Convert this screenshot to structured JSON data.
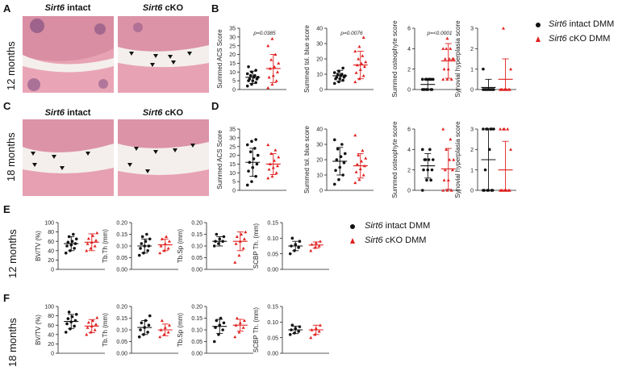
{
  "panels": {
    "A": {
      "label": "A",
      "row_label": "12 months"
    },
    "B": {
      "label": "B"
    },
    "C": {
      "label": "C",
      "row_label": "18 months"
    },
    "D": {
      "label": "D"
    },
    "E": {
      "label": "E",
      "row_label": "12 months"
    },
    "F": {
      "label": "F",
      "row_label": "18 months"
    }
  },
  "histology": {
    "intact_title_italic": "Sirt6",
    "intact_title_rest": " intact",
    "cko_title_italic": "Sirt6",
    "cko_title_rest": " cKO"
  },
  "legend_bd": {
    "intact_italic": "Sirt6",
    "intact_rest": " intact DMM",
    "cko_italic": "Sirt6",
    "cko_rest": " cKO DMM"
  },
  "legend_ef": {
    "intact_italic": "Sirt6",
    "intact_rest": " intact DMM",
    "cko_italic": "Sirt6",
    "cko_rest": " cKO DMM"
  },
  "colors": {
    "intact": "#111111",
    "cko": "#e02020",
    "tissue": "#e9a7b5",
    "tissue_dark": "#c96b85",
    "space": "#f3f0ee"
  },
  "chart_data": [
    {
      "id": "B1",
      "type": "scatter",
      "ylabel": "Summed ACS Score",
      "ylim": [
        0,
        35
      ],
      "yticks": [
        0,
        5,
        10,
        15,
        20,
        25,
        30,
        35
      ],
      "pvalue": "p=0.0385",
      "groups": [
        {
          "name": "Sirt6 intact DMM",
          "mean": 7,
          "sd": 3.5,
          "values": [
            2,
            3,
            4,
            5,
            5,
            6,
            6,
            7,
            7,
            8,
            8,
            9,
            10,
            11,
            13
          ]
        },
        {
          "name": "Sirt6 cKO DMM",
          "mean": 12,
          "sd": 8,
          "values": [
            1,
            3,
            5,
            7,
            8,
            10,
            12,
            13,
            15,
            17,
            20,
            25,
            29
          ]
        }
      ]
    },
    {
      "id": "B2",
      "type": "scatter",
      "ylabel": "Summed tol. blue score",
      "ylim": [
        0,
        40
      ],
      "yticks": [
        0,
        10,
        20,
        30,
        40
      ],
      "pvalue": "p=0.0076",
      "groups": [
        {
          "name": "Sirt6 intact DMM",
          "mean": 9,
          "sd": 3.5,
          "values": [
            4,
            5,
            6,
            7,
            7,
            8,
            8,
            9,
            9,
            10,
            10,
            11,
            12,
            14
          ]
        },
        {
          "name": "Sirt6 cKO DMM",
          "mean": 16,
          "sd": 9,
          "values": [
            5,
            7,
            9,
            11,
            13,
            15,
            16,
            17,
            18,
            20,
            22,
            25,
            28,
            34
          ]
        }
      ]
    },
    {
      "id": "B3",
      "type": "scatter",
      "ylabel": "Summed osteophyte score",
      "ylim": [
        0,
        6
      ],
      "yticks": [
        0,
        2,
        4,
        6
      ],
      "pvalue": "p=<0.0001",
      "groups": [
        {
          "name": "Sirt6 intact DMM",
          "mean": 0.5,
          "sd": 0.5,
          "values": [
            0,
            0,
            0,
            0,
            0,
            0,
            0,
            1,
            1,
            1,
            1,
            1,
            1,
            1
          ]
        },
        {
          "name": "Sirt6 cKO DMM",
          "mean": 2.8,
          "sd": 1.7,
          "values": [
            1,
            1,
            1,
            2,
            2,
            3,
            3,
            3,
            3,
            4,
            4,
            4,
            5
          ]
        }
      ]
    },
    {
      "id": "B4",
      "type": "scatter",
      "ylabel": "Synovial hyperplasia score",
      "ylim": [
        0,
        3
      ],
      "yticks": [
        0,
        1,
        2,
        3
      ],
      "pvalue": "",
      "groups": [
        {
          "name": "Sirt6 intact DMM",
          "mean": 0.1,
          "sd": 0.4,
          "values": [
            0,
            0,
            0,
            0,
            0,
            0,
            0,
            0,
            0,
            0,
            0,
            1
          ]
        },
        {
          "name": "Sirt6 cKO DMM",
          "mean": 0.5,
          "sd": 1.0,
          "values": [
            0,
            0,
            0,
            0,
            0,
            0,
            0,
            0,
            1,
            3
          ]
        }
      ]
    },
    {
      "id": "D1",
      "type": "scatter",
      "ylabel": "Summed ACS Score",
      "ylim": [
        0,
        35
      ],
      "yticks": [
        0,
        5,
        10,
        15,
        20,
        25,
        30,
        35
      ],
      "pvalue": "",
      "groups": [
        {
          "name": "Sirt6 intact DMM",
          "mean": 16,
          "sd": 8,
          "values": [
            3,
            5,
            8,
            11,
            13,
            15,
            16,
            18,
            20,
            22,
            24,
            26,
            28,
            29
          ]
        },
        {
          "name": "Sirt6 cKO DMM",
          "mean": 15,
          "sd": 6,
          "values": [
            7,
            8,
            10,
            12,
            13,
            14,
            15,
            17,
            19,
            21,
            23,
            26
          ]
        }
      ]
    },
    {
      "id": "D2",
      "type": "scatter",
      "ylabel": "Summed tol. blue score",
      "ylim": [
        0,
        40
      ],
      "yticks": [
        0,
        10,
        20,
        30,
        40
      ],
      "pvalue": "",
      "groups": [
        {
          "name": "Sirt6 intact DMM",
          "mean": 19,
          "sd": 9,
          "values": [
            4,
            7,
            10,
            13,
            15,
            18,
            20,
            22,
            24,
            27,
            30,
            33
          ]
        },
        {
          "name": "Sirt6 cKO DMM",
          "mean": 16,
          "sd": 8,
          "values": [
            5,
            7,
            10,
            12,
            14,
            16,
            17,
            19,
            21,
            23,
            26,
            36
          ]
        }
      ]
    },
    {
      "id": "D3",
      "type": "scatter",
      "ylabel": "Summed osteophyte score",
      "ylim": [
        0,
        6
      ],
      "yticks": [
        0,
        2,
        4,
        6
      ],
      "pvalue": "",
      "groups": [
        {
          "name": "Sirt6 intact DMM",
          "mean": 2.4,
          "sd": 1.2,
          "values": [
            0,
            1,
            1,
            2,
            2,
            2,
            3,
            3,
            3,
            3,
            4,
            4
          ]
        },
        {
          "name": "Sirt6 cKO DMM",
          "mean": 2.1,
          "sd": 2.0,
          "values": [
            0,
            0,
            0,
            1,
            1,
            2,
            2,
            3,
            3,
            4,
            5,
            6
          ]
        }
      ]
    },
    {
      "id": "D4",
      "type": "scatter",
      "ylabel": "Synovial hyperplasia score",
      "ylim": [
        0,
        3
      ],
      "yticks": [
        0,
        1,
        2,
        3
      ],
      "pvalue": "",
      "groups": [
        {
          "name": "Sirt6 intact DMM",
          "mean": 1.5,
          "sd": 1.5,
          "values": [
            0,
            0,
            0,
            0,
            0,
            0,
            1,
            2,
            3,
            3,
            3,
            3,
            3,
            3
          ]
        },
        {
          "name": "Sirt6 cKO DMM",
          "mean": 1.0,
          "sd": 1.4,
          "values": [
            0,
            0,
            0,
            0,
            0,
            0,
            0,
            0,
            2,
            3,
            3,
            3,
            3
          ]
        }
      ]
    },
    {
      "id": "E1",
      "type": "scatter",
      "ylabel": "BV/TV (%)",
      "ylim": [
        0,
        100
      ],
      "yticks": [
        0,
        20,
        40,
        60,
        80,
        100
      ],
      "pvalue": "",
      "groups": [
        {
          "name": "Sirt6 intact DMM",
          "mean": 55,
          "sd": 15,
          "values": [
            35,
            40,
            45,
            50,
            52,
            55,
            58,
            60,
            65,
            70,
            75
          ]
        },
        {
          "name": "Sirt6 cKO DMM",
          "mean": 58,
          "sd": 18,
          "values": [
            40,
            45,
            50,
            55,
            58,
            62,
            66,
            72,
            78
          ]
        }
      ]
    },
    {
      "id": "E2",
      "type": "scatter",
      "ylabel": "Tb.Th (mm)",
      "ylim": [
        0,
        0.2
      ],
      "yticks": [
        0.0,
        0.05,
        0.1,
        0.15,
        0.2
      ],
      "pvalue": "",
      "groups": [
        {
          "name": "Sirt6 intact DMM",
          "mean": 0.1,
          "sd": 0.03,
          "values": [
            0.06,
            0.07,
            0.08,
            0.09,
            0.1,
            0.1,
            0.11,
            0.12,
            0.13,
            0.14,
            0.15
          ]
        },
        {
          "name": "Sirt6 cKO DMM",
          "mean": 0.105,
          "sd": 0.025,
          "values": [
            0.07,
            0.08,
            0.09,
            0.1,
            0.11,
            0.12,
            0.13,
            0.14
          ]
        }
      ]
    },
    {
      "id": "E3",
      "type": "scatter",
      "ylabel": "Tb.Sp (mm)",
      "ylim": [
        0,
        0.2
      ],
      "yticks": [
        0.0,
        0.05,
        0.1,
        0.15,
        0.2
      ],
      "pvalue": "",
      "groups": [
        {
          "name": "Sirt6 intact DMM",
          "mean": 0.12,
          "sd": 0.02,
          "values": [
            0.1,
            0.11,
            0.12,
            0.12,
            0.13,
            0.14,
            0.15
          ]
        },
        {
          "name": "Sirt6 cKO DMM",
          "mean": 0.12,
          "sd": 0.04,
          "values": [
            0.03,
            0.06,
            0.09,
            0.11,
            0.12,
            0.13,
            0.14,
            0.15,
            0.16
          ]
        }
      ]
    },
    {
      "id": "E4",
      "type": "scatter",
      "ylabel": "SCBP Th. (mm)",
      "ylim": [
        0,
        0.15
      ],
      "yticks": [
        0.0,
        0.05,
        0.1,
        0.15
      ],
      "pvalue": "",
      "groups": [
        {
          "name": "Sirt6 intact DMM",
          "mean": 0.075,
          "sd": 0.015,
          "values": [
            0.05,
            0.06,
            0.07,
            0.075,
            0.08,
            0.09,
            0.1
          ]
        },
        {
          "name": "Sirt6 cKO DMM",
          "mean": 0.078,
          "sd": 0.01,
          "values": [
            0.06,
            0.07,
            0.075,
            0.08,
            0.085,
            0.09
          ]
        }
      ]
    },
    {
      "id": "F1",
      "type": "scatter",
      "ylabel": "BV/TV (%)",
      "ylim": [
        0,
        100
      ],
      "yticks": [
        0,
        20,
        40,
        60,
        80,
        100
      ],
      "pvalue": "",
      "groups": [
        {
          "name": "Sirt6 intact DMM",
          "mean": 68,
          "sd": 15,
          "values": [
            45,
            52,
            58,
            63,
            67,
            70,
            74,
            78,
            83,
            88
          ]
        },
        {
          "name": "Sirt6 cKO DMM",
          "mean": 58,
          "sd": 14,
          "values": [
            40,
            45,
            50,
            55,
            58,
            62,
            66,
            70,
            76
          ]
        }
      ]
    },
    {
      "id": "F2",
      "type": "scatter",
      "ylabel": "Tb.Th (mm)",
      "ylim": [
        0,
        0.2
      ],
      "yticks": [
        0.0,
        0.05,
        0.1,
        0.15,
        0.2
      ],
      "pvalue": "",
      "groups": [
        {
          "name": "Sirt6 intact DMM",
          "mean": 0.11,
          "sd": 0.03,
          "values": [
            0.07,
            0.08,
            0.09,
            0.1,
            0.11,
            0.12,
            0.13,
            0.14,
            0.16
          ]
        },
        {
          "name": "Sirt6 cKO DMM",
          "mean": 0.1,
          "sd": 0.025,
          "values": [
            0.07,
            0.08,
            0.09,
            0.1,
            0.11,
            0.12,
            0.14
          ]
        }
      ]
    },
    {
      "id": "F3",
      "type": "scatter",
      "ylabel": "Tb.Sp  (mm)",
      "ylim": [
        0,
        0.2
      ],
      "yticks": [
        0.0,
        0.05,
        0.1,
        0.15,
        0.2
      ],
      "pvalue": "",
      "groups": [
        {
          "name": "Sirt6 intact DMM",
          "mean": 0.115,
          "sd": 0.03,
          "values": [
            0.05,
            0.08,
            0.1,
            0.11,
            0.12,
            0.13,
            0.14,
            0.15
          ]
        },
        {
          "name": "Sirt6 cKO DMM",
          "mean": 0.12,
          "sd": 0.025,
          "values": [
            0.07,
            0.09,
            0.11,
            0.12,
            0.13,
            0.14,
            0.15
          ]
        }
      ]
    },
    {
      "id": "F4",
      "type": "scatter",
      "ylabel": "SCBP Th. (mm)",
      "ylim": [
        0,
        0.15
      ],
      "yticks": [
        0.0,
        0.05,
        0.1,
        0.15
      ],
      "pvalue": "",
      "groups": [
        {
          "name": "Sirt6 intact DMM",
          "mean": 0.075,
          "sd": 0.012,
          "values": [
            0.06,
            0.065,
            0.07,
            0.075,
            0.08,
            0.085,
            0.09
          ]
        },
        {
          "name": "Sirt6 cKO DMM",
          "mean": 0.075,
          "sd": 0.015,
          "values": [
            0.05,
            0.06,
            0.07,
            0.075,
            0.08,
            0.09
          ]
        }
      ]
    }
  ]
}
